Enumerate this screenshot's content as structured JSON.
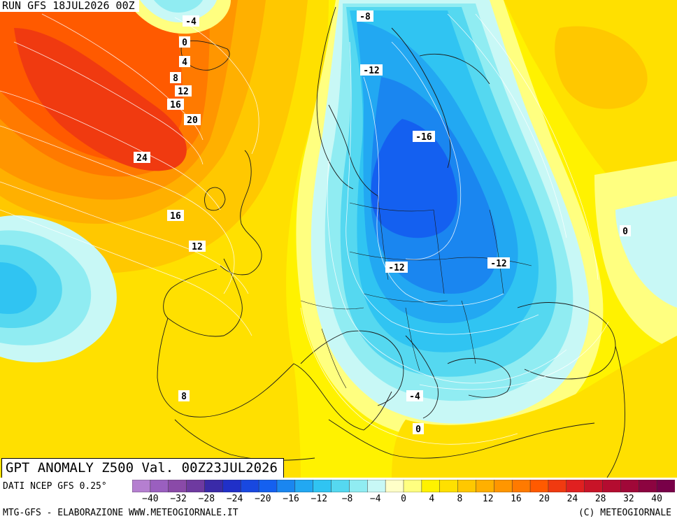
{
  "run_label": "RUN GFS 18JUL2026 00Z",
  "title": "GPT ANOMALY Z500 Val. 00Z23JUL2026",
  "source": "DATI NCEP GFS 0.25°",
  "footer_left": "MTG-GFS - ELABORAZIONE WWW.METEOGIORNALE.IT",
  "footer_right": "(C) METEOGIORNALE",
  "colorbar": {
    "ticks": [
      "-40",
      "-32",
      "-28",
      "-24",
      "-20",
      "-16",
      "-12",
      "-8",
      "-4",
      "0",
      "4",
      "8",
      "12",
      "16",
      "20",
      "24",
      "28",
      "32",
      "40"
    ],
    "colors": [
      "#b57fd0",
      "#9a5fbf",
      "#8a4aa8",
      "#6e3aa0",
      "#3a2aa8",
      "#2030c8",
      "#1848e0",
      "#1460f0",
      "#1a86f0",
      "#22a8f2",
      "#30c4f2",
      "#55d8f0",
      "#90ecf2",
      "#c8f8f6",
      "#ffffc8",
      "#ffff80",
      "#fff200",
      "#ffe000",
      "#ffc800",
      "#ffb000",
      "#ff9600",
      "#ff7a00",
      "#ff5a00",
      "#f03a10",
      "#e02020",
      "#c81428",
      "#b40c30",
      "#a00838",
      "#8c0440",
      "#780048"
    ]
  },
  "map_labels": {
    "l1": "-4",
    "l2": "0",
    "l3": "4",
    "l4": "8",
    "l5": "12",
    "l6": "16",
    "l7": "20",
    "l8": "24",
    "l9": "16",
    "l10": "12",
    "l11": "8",
    "l12": "-8",
    "l13": "-12",
    "l14": "-16",
    "l15": "-12",
    "l16": "-12",
    "l17": "-4",
    "l18": "0",
    "l19": "0"
  },
  "colors": {
    "high": "#f04018",
    "low": "#1a78e8",
    "neutral": "#ffff80"
  }
}
